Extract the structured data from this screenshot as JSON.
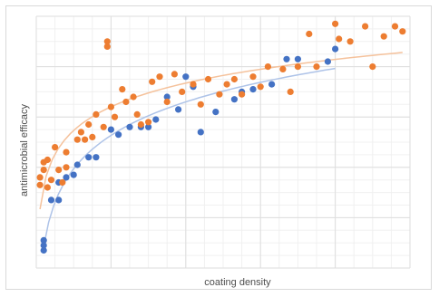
{
  "chart_data": {
    "type": "scatter",
    "title": "",
    "xlabel": "coating density",
    "ylabel": "antimicrobial efficacy",
    "xlim": [
      0,
      10
    ],
    "ylim": [
      0,
      10
    ],
    "grid": true,
    "legend": "none",
    "series": [
      {
        "color": "#4472c4",
        "trendline": "logarithmic",
        "trendline_color": "#aec3e8",
        "points": [
          [
            0.2,
            0.7
          ],
          [
            0.2,
            0.9
          ],
          [
            0.2,
            1.1
          ],
          [
            0.4,
            2.7
          ],
          [
            0.6,
            2.7
          ],
          [
            0.6,
            3.4
          ],
          [
            0.8,
            3.6
          ],
          [
            1.0,
            3.7
          ],
          [
            1.1,
            4.1
          ],
          [
            1.4,
            4.4
          ],
          [
            1.6,
            4.4
          ],
          [
            2.0,
            5.5
          ],
          [
            2.2,
            5.3
          ],
          [
            2.5,
            5.6
          ],
          [
            2.8,
            5.6
          ],
          [
            3.0,
            5.6
          ],
          [
            3.2,
            5.9
          ],
          [
            3.5,
            6.8
          ],
          [
            3.8,
            6.3
          ],
          [
            4.0,
            7.6
          ],
          [
            4.4,
            5.4
          ],
          [
            4.2,
            7.2
          ],
          [
            4.8,
            6.2
          ],
          [
            5.3,
            6.7
          ],
          [
            5.5,
            7.0
          ],
          [
            5.8,
            7.1
          ],
          [
            6.3,
            7.3
          ],
          [
            6.7,
            8.3
          ],
          [
            7.0,
            8.3
          ],
          [
            7.8,
            8.2
          ],
          [
            8.0,
            8.7
          ]
        ]
      },
      {
        "color": "#ed7d31",
        "trendline": "logarithmic",
        "trendline_color": "#f5c29c",
        "points": [
          [
            0.1,
            3.3
          ],
          [
            0.1,
            3.6
          ],
          [
            0.2,
            3.9
          ],
          [
            0.2,
            4.2
          ],
          [
            0.3,
            3.2
          ],
          [
            0.3,
            4.3
          ],
          [
            0.4,
            3.5
          ],
          [
            0.5,
            4.8
          ],
          [
            0.6,
            3.9
          ],
          [
            0.7,
            3.4
          ],
          [
            0.8,
            4.0
          ],
          [
            0.8,
            4.6
          ],
          [
            1.1,
            5.1
          ],
          [
            1.2,
            5.4
          ],
          [
            1.3,
            5.1
          ],
          [
            1.4,
            5.7
          ],
          [
            1.5,
            5.2
          ],
          [
            1.6,
            6.1
          ],
          [
            1.8,
            5.6
          ],
          [
            1.9,
            9.0
          ],
          [
            1.9,
            8.8
          ],
          [
            2.0,
            6.4
          ],
          [
            2.1,
            6.0
          ],
          [
            2.3,
            7.1
          ],
          [
            2.4,
            6.6
          ],
          [
            2.6,
            6.8
          ],
          [
            2.7,
            6.1
          ],
          [
            2.8,
            5.7
          ],
          [
            3.0,
            5.8
          ],
          [
            3.1,
            7.4
          ],
          [
            3.3,
            7.6
          ],
          [
            3.5,
            6.6
          ],
          [
            3.7,
            7.7
          ],
          [
            3.9,
            7.0
          ],
          [
            4.2,
            7.3
          ],
          [
            4.4,
            6.5
          ],
          [
            4.6,
            7.5
          ],
          [
            4.9,
            6.9
          ],
          [
            5.1,
            7.3
          ],
          [
            5.3,
            7.5
          ],
          [
            5.5,
            6.9
          ],
          [
            5.8,
            7.6
          ],
          [
            6.0,
            7.2
          ],
          [
            6.2,
            8.0
          ],
          [
            6.6,
            7.9
          ],
          [
            6.8,
            7.0
          ],
          [
            7.0,
            8.0
          ],
          [
            7.3,
            9.3
          ],
          [
            7.5,
            8.0
          ],
          [
            8.0,
            9.7
          ],
          [
            8.1,
            9.1
          ],
          [
            8.4,
            9.0
          ],
          [
            8.8,
            9.6
          ],
          [
            9.0,
            8.0
          ],
          [
            9.3,
            9.2
          ],
          [
            9.6,
            9.6
          ],
          [
            9.8,
            9.4
          ]
        ]
      }
    ]
  }
}
